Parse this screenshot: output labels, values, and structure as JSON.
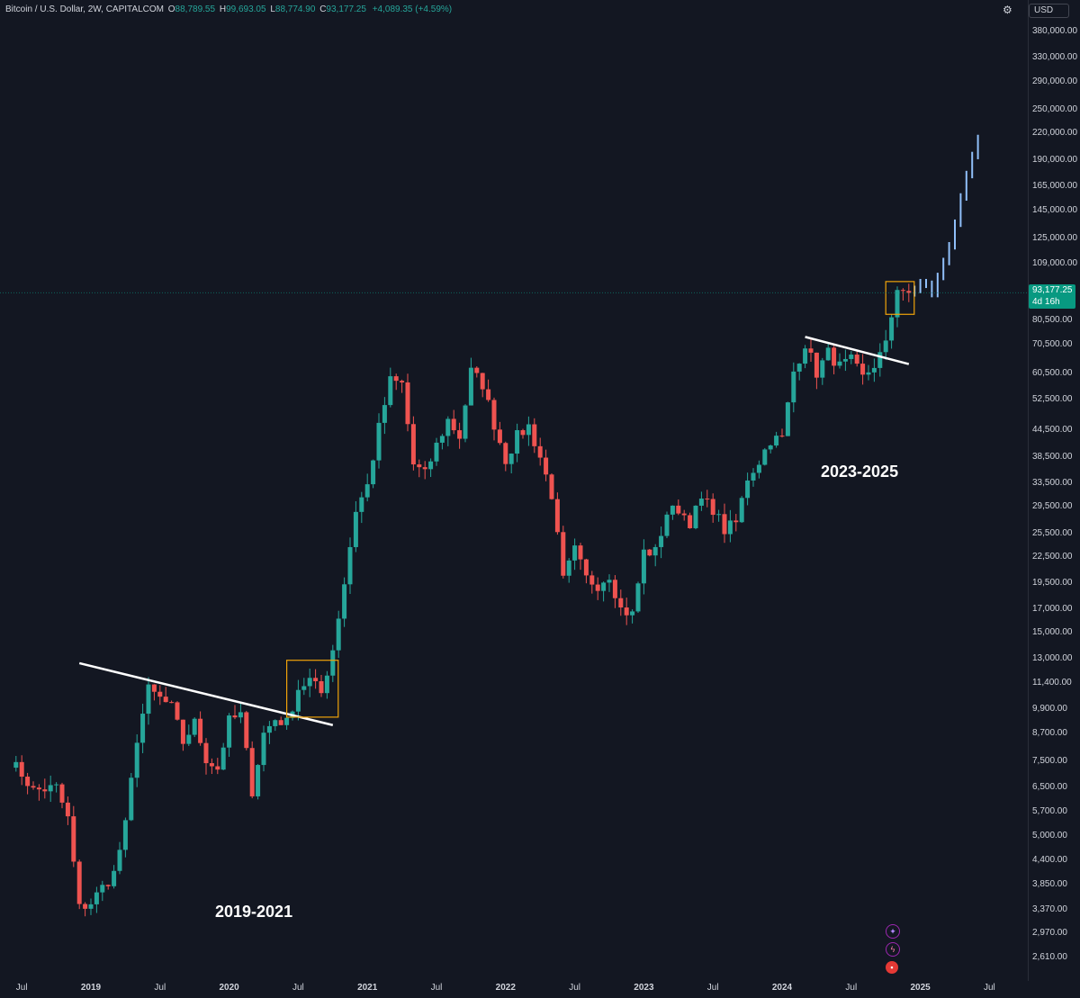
{
  "header": {
    "symbol": "Bitcoin / U.S. Dollar, 2W, CAPITALCOM",
    "open_label": "O",
    "open": "88,789.55",
    "high_label": "H",
    "high": "99,693.05",
    "low_label": "L",
    "low": "88,774.90",
    "close_label": "C",
    "close": "93,177.25",
    "change": "+4,089.35 (+4.59%)"
  },
  "currency": "USD",
  "last_price": {
    "price": "93,177.25",
    "countdown": "4d 16h"
  },
  "colors": {
    "up": "#26a69a",
    "down": "#ef5350",
    "projection": "#90bff9",
    "box": "#f0a30a",
    "trendline": "#ffffff",
    "background": "#131722"
  },
  "icons": [
    "gear-icon",
    "sparkle-icon",
    "lightning-icon",
    "us-flag-icon"
  ],
  "chart_data": {
    "type": "candlestick",
    "scale": "log",
    "price_axis": [
      "380,000.00",
      "330,000.00",
      "290,000.00",
      "250,000.00",
      "220,000.00",
      "190,000.00",
      "165,000.00",
      "145,000.00",
      "125,000.00",
      "109,000.00",
      "80,500.00",
      "70,500.00",
      "60,500.00",
      "52,500.00",
      "44,500.00",
      "38,500.00",
      "33,500.00",
      "29,500.00",
      "25,500.00",
      "22,500.00",
      "19,500.00",
      "17,000.00",
      "15,000.00",
      "13,000.00",
      "11,400.00",
      "9,900.00",
      "8,700.00",
      "7,500.00",
      "6,500.00",
      "5,700.00",
      "5,000.00",
      "4,400.00",
      "3,850.00",
      "3,370.00",
      "2,970.00",
      "2,610.00"
    ],
    "time_axis": [
      {
        "label": "Jul",
        "year": false
      },
      {
        "label": "2019",
        "year": true
      },
      {
        "label": "Jul",
        "year": false
      },
      {
        "label": "2020",
        "year": true
      },
      {
        "label": "Jul",
        "year": false
      },
      {
        "label": "2021",
        "year": true
      },
      {
        "label": "Jul",
        "year": false
      },
      {
        "label": "2022",
        "year": true
      },
      {
        "label": "Jul",
        "year": false
      },
      {
        "label": "2023",
        "year": true
      },
      {
        "label": "Jul",
        "year": false
      },
      {
        "label": "2024",
        "year": true
      },
      {
        "label": "Jul",
        "year": false
      },
      {
        "label": "2025",
        "year": true
      },
      {
        "label": "Jul",
        "year": false
      }
    ],
    "annotations": [
      "2019-2021",
      "2023-2025"
    ],
    "anchors": [
      {
        "date": "2018-06",
        "price": 7500
      },
      {
        "date": "2018-07",
        "price": 7000
      },
      {
        "date": "2018-08",
        "price": 6400
      },
      {
        "date": "2018-10",
        "price": 6500
      },
      {
        "date": "2018-11",
        "price": 5500
      },
      {
        "date": "2018-12",
        "price": 3400
      },
      {
        "date": "2019-01",
        "price": 3500
      },
      {
        "date": "2019-02",
        "price": 3800
      },
      {
        "date": "2019-03",
        "price": 4100
      },
      {
        "date": "2019-04",
        "price": 5300
      },
      {
        "date": "2019-05",
        "price": 8500
      },
      {
        "date": "2019-06",
        "price": 11000
      },
      {
        "date": "2019-07",
        "price": 10500
      },
      {
        "date": "2019-08",
        "price": 10000
      },
      {
        "date": "2019-09",
        "price": 8300
      },
      {
        "date": "2019-10",
        "price": 9200
      },
      {
        "date": "2019-11",
        "price": 7600
      },
      {
        "date": "2019-12",
        "price": 7200
      },
      {
        "date": "2020-01",
        "price": 9300
      },
      {
        "date": "2020-02",
        "price": 9600
      },
      {
        "date": "2020-03",
        "price": 6400
      },
      {
        "date": "2020-04",
        "price": 8700
      },
      {
        "date": "2020-05",
        "price": 9400
      },
      {
        "date": "2020-06",
        "price": 9200
      },
      {
        "date": "2020-07",
        "price": 11100
      },
      {
        "date": "2020-08",
        "price": 11600
      },
      {
        "date": "2020-09",
        "price": 10800
      },
      {
        "date": "2020-10",
        "price": 13700
      },
      {
        "date": "2020-11",
        "price": 19600
      },
      {
        "date": "2020-12",
        "price": 29000
      },
      {
        "date": "2021-01",
        "price": 33000
      },
      {
        "date": "2021-02",
        "price": 45000
      },
      {
        "date": "2021-03",
        "price": 58000
      },
      {
        "date": "2021-04",
        "price": 57000
      },
      {
        "date": "2021-05",
        "price": 37000
      },
      {
        "date": "2021-06",
        "price": 35000
      },
      {
        "date": "2021-07",
        "price": 41000
      },
      {
        "date": "2021-08",
        "price": 47000
      },
      {
        "date": "2021-09",
        "price": 43000
      },
      {
        "date": "2021-10",
        "price": 61000
      },
      {
        "date": "2021-11",
        "price": 57000
      },
      {
        "date": "2021-12",
        "price": 46000
      },
      {
        "date": "2022-01",
        "price": 38000
      },
      {
        "date": "2022-02",
        "price": 43000
      },
      {
        "date": "2022-03",
        "price": 45500
      },
      {
        "date": "2022-04",
        "price": 38500
      },
      {
        "date": "2022-05",
        "price": 31500
      },
      {
        "date": "2022-06",
        "price": 19800
      },
      {
        "date": "2022-07",
        "price": 23300
      },
      {
        "date": "2022-08",
        "price": 20000
      },
      {
        "date": "2022-09",
        "price": 19400
      },
      {
        "date": "2022-10",
        "price": 20500
      },
      {
        "date": "2022-11",
        "price": 17000
      },
      {
        "date": "2022-12",
        "price": 16500
      },
      {
        "date": "2023-01",
        "price": 23100
      },
      {
        "date": "2023-02",
        "price": 23100
      },
      {
        "date": "2023-03",
        "price": 28500
      },
      {
        "date": "2023-04",
        "price": 29200
      },
      {
        "date": "2023-05",
        "price": 27200
      },
      {
        "date": "2023-06",
        "price": 30500
      },
      {
        "date": "2023-07",
        "price": 29200
      },
      {
        "date": "2023-08",
        "price": 26000
      },
      {
        "date": "2023-09",
        "price": 27000
      },
      {
        "date": "2023-10",
        "price": 34500
      },
      {
        "date": "2023-11",
        "price": 37700
      },
      {
        "date": "2023-12",
        "price": 42300
      },
      {
        "date": "2024-01",
        "price": 42500
      },
      {
        "date": "2024-02",
        "price": 61000
      },
      {
        "date": "2024-03",
        "price": 71000
      },
      {
        "date": "2024-04",
        "price": 60600
      },
      {
        "date": "2024-05",
        "price": 67500
      },
      {
        "date": "2024-06",
        "price": 62700
      },
      {
        "date": "2024-07",
        "price": 64600
      },
      {
        "date": "2024-08",
        "price": 58900
      },
      {
        "date": "2024-09",
        "price": 63300
      },
      {
        "date": "2024-10",
        "price": 70200
      },
      {
        "date": "2024-11",
        "price": 96400
      },
      {
        "date": "2024-12",
        "price": 93177
      }
    ],
    "projection": [
      {
        "date": "2025-01",
        "price": 97000
      },
      {
        "date": "2025-02",
        "price": 95000
      },
      {
        "date": "2025-03",
        "price": 112000
      },
      {
        "date": "2025-04",
        "price": 135000
      },
      {
        "date": "2025-05",
        "price": 175000
      },
      {
        "date": "2025-06",
        "price": 210000
      }
    ],
    "trendlines": [
      {
        "from": {
          "date": "2018-12",
          "price": 12700
        },
        "to": {
          "date": "2020-10",
          "price": 9100
        }
      },
      {
        "from": {
          "date": "2024-03",
          "price": 73500
        },
        "to": {
          "date": "2024-12",
          "price": 63500
        }
      }
    ],
    "boxes": [
      {
        "from": {
          "date": "2020-06",
          "price": 12900
        },
        "to": {
          "date": "2020-10",
          "price": 9500
        }
      },
      {
        "from": {
          "date": "2024-10",
          "price": 99000
        },
        "to": {
          "date": "2024-12",
          "price": 83000
        }
      }
    ]
  }
}
